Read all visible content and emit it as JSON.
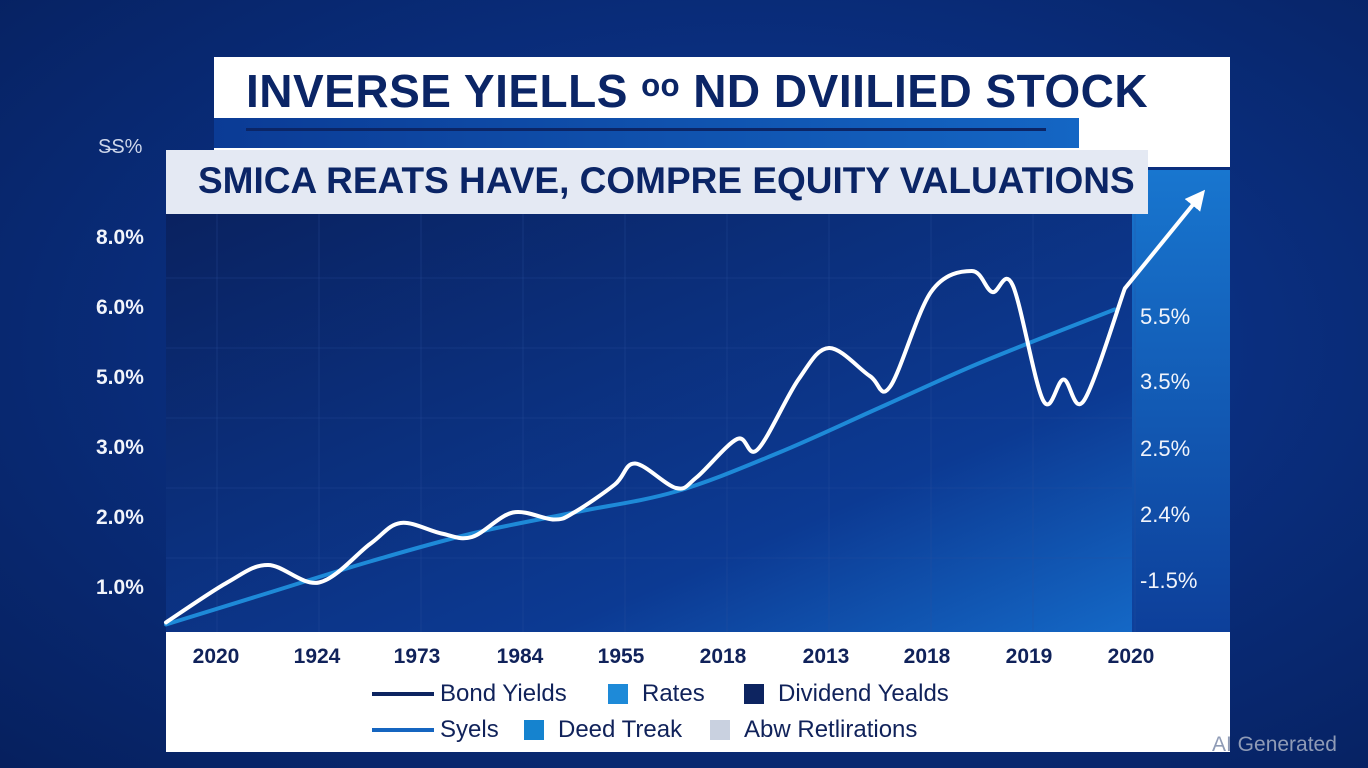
{
  "title": "INVERSE YIELLS ᵒᵒ ND DVIILIED STOCK",
  "subtitle": "SMICA REATS HAVE, COMPRE EQUITY VALUATIONS",
  "corner_label": "S̶S%",
  "watermark": "AI Generated",
  "colors": {
    "background": "#0a2f80",
    "white_line": "#ffffff",
    "blue_line": "#1e8ad8",
    "panel": "#ffffff",
    "text_dark": "#10225a"
  },
  "chart_data": {
    "type": "line",
    "title": "INVERSE YIELLS ᵒᵒ ND DVIILIED STOCK",
    "subtitle": "SMICA REATS HAVE, COMPRE EQUITY VALUATIONS",
    "x": [
      "2020",
      "1924",
      "1973",
      "1984",
      "1955",
      "2018",
      "2013",
      "2018",
      "2019",
      "2020"
    ],
    "left_axis_ticks": [
      "8.0%",
      "6.0%",
      "5.0%",
      "3.0%",
      "2.0%",
      "1.0%"
    ],
    "right_axis_ticks": [
      "5.5%",
      "3.5%",
      "2.5%",
      "2.4%",
      "-1.5%"
    ],
    "grid": true,
    "legend": "bottom",
    "legend_entries": [
      {
        "label": "Bond Yields",
        "symbol": "line",
        "color": "#0d2460"
      },
      {
        "label": "Rates",
        "symbol": "square",
        "color": "#1e8ad8"
      },
      {
        "label": "Dividend Yealds",
        "symbol": "square",
        "color": "#0d2460"
      },
      {
        "label": "Syels",
        "symbol": "line",
        "color": "#1565c0"
      },
      {
        "label": "Deed Treak",
        "symbol": "square",
        "color": "#1583cf"
      },
      {
        "label": "Abw Retlirations",
        "symbol": "square",
        "color": "#c9d1e0"
      }
    ],
    "series": [
      {
        "color": "#ffffff",
        "x": [
          0,
          0.6,
          1.0,
          1.5,
          2.0,
          2.3,
          2.7,
          3.0,
          3.4,
          3.8,
          4.0,
          4.4,
          4.6,
          5.0,
          5.2,
          5.6,
          5.8,
          6.2,
          6.5,
          6.9,
          7.1,
          7.5,
          7.9,
          8.1,
          8.3,
          8.6,
          8.8,
          9.0,
          9.4
        ],
        "y": [
          0.08,
          0.65,
          0.9,
          0.65,
          1.2,
          1.5,
          1.35,
          1.3,
          1.65,
          1.55,
          1.65,
          2.05,
          2.35,
          2.0,
          2.15,
          2.7,
          2.55,
          3.55,
          4.0,
          3.6,
          3.45,
          4.8,
          5.1,
          4.8,
          4.9,
          3.25,
          3.55,
          3.25,
          4.85
        ]
      },
      {
        "color": "#1e8ad8",
        "x": [
          0,
          1,
          2,
          3,
          4,
          5,
          6,
          7,
          8,
          9.3
        ],
        "y": [
          0.05,
          0.5,
          0.95,
          1.35,
          1.65,
          1.95,
          2.5,
          3.15,
          3.8,
          4.55
        ]
      }
    ]
  }
}
